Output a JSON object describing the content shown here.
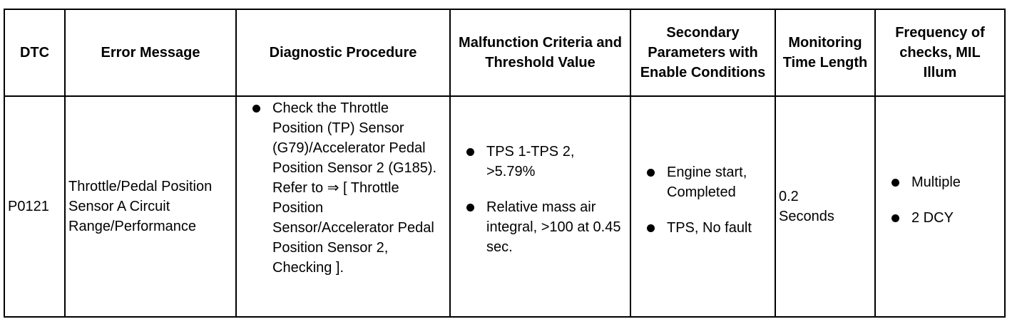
{
  "headers": {
    "dtc": "DTC",
    "error_message": "Error Message",
    "diagnostic_procedure": "Diagnostic Procedure",
    "malfunction_criteria": "Malfunction Criteria and Threshold Value",
    "secondary_parameters": "Secondary Parameters with Enable Conditions",
    "monitoring_time": "Monitoring Time Length",
    "frequency": "Frequency of checks, MIL Illum"
  },
  "row": {
    "dtc": "P0121",
    "error_message": "Throttle/Pedal Position Sensor A Circuit Range/Performance",
    "diagnostic_procedure": "Check the Throttle Position (TP) Sensor (G79)/Accelerator Pedal Position Sensor 2 (G185). Refer to ⇒ [ Throttle Position Sensor/Accelerator Pedal Position Sensor 2, Checking ].",
    "malfunction_criteria": [
      "TPS 1-TPS 2, >5.79%",
      "Relative mass air integral, >100 at 0.45 sec."
    ],
    "secondary_parameters": [
      "Engine start, Completed",
      "TPS, No fault"
    ],
    "monitoring_time": "0.2 Seconds",
    "frequency": [
      "Multiple",
      "2 DCY"
    ]
  }
}
